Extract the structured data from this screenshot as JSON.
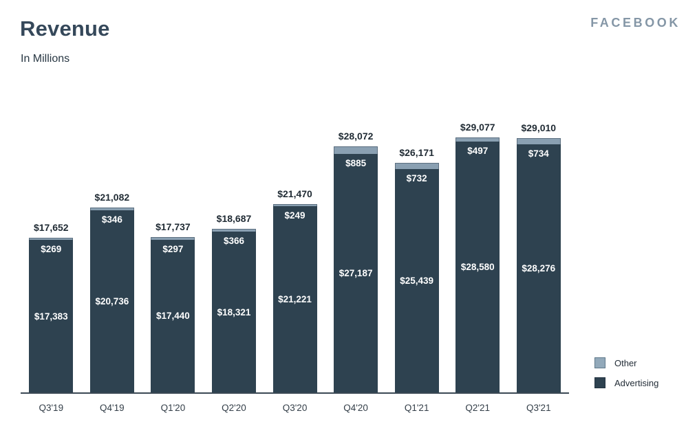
{
  "header": {
    "title": "Revenue",
    "subtitle": "In Millions",
    "brand": "FACEBOOK"
  },
  "legend": {
    "items": [
      {
        "label": "Other",
        "series": "Other"
      },
      {
        "label": "Advertising",
        "series": "Advertising"
      }
    ]
  },
  "colors": {
    "advertising": "#2E4250",
    "other_segment": "#8AA0B2",
    "other_legend": "#92A9BA",
    "other_border": "#5E7889",
    "advertising_border": "#223240",
    "axis": "#3A4854",
    "title_text": "#35485A",
    "brand_text": "#8496A6",
    "total_label_text": "#1F2A33",
    "inside_label_text": "#FFFFFF"
  },
  "chart_data": {
    "type": "bar",
    "subtype": "stacked-column",
    "title": "Revenue",
    "subtitle_note": "In Millions",
    "xlabel": "",
    "ylabel": "",
    "value_prefix": "$",
    "grid": false,
    "legend_position": "bottom-right",
    "ylim": [
      0,
      29077
    ],
    "categories": [
      "Q3'19",
      "Q4'19",
      "Q1'20",
      "Q2'20",
      "Q3'20",
      "Q4'20",
      "Q1'21",
      "Q2'21",
      "Q3'21"
    ],
    "series": [
      {
        "name": "Advertising",
        "values": [
          17383,
          20736,
          17440,
          18321,
          21221,
          27187,
          25439,
          28580,
          28276
        ]
      },
      {
        "name": "Other",
        "values": [
          269,
          346,
          297,
          366,
          249,
          885,
          732,
          497,
          734
        ]
      }
    ],
    "totals": [
      17652,
      21082,
      17737,
      18687,
      21470,
      28072,
      26171,
      29077,
      29010
    ],
    "total_labels": [
      "$17,652",
      "$21,082",
      "$17,737",
      "$18,687",
      "$21,470",
      "$28,072",
      "$26,171",
      "$29,077",
      "$29,010"
    ],
    "advertising_labels": [
      "$17,383",
      "$20,736",
      "$17,440",
      "$18,321",
      "$21,221",
      "$27,187",
      "$25,439",
      "$28,580",
      "$28,276"
    ],
    "other_labels": [
      "$269",
      "$346",
      "$297",
      "$366",
      "$249",
      "$885",
      "$732",
      "$497",
      "$734"
    ]
  }
}
